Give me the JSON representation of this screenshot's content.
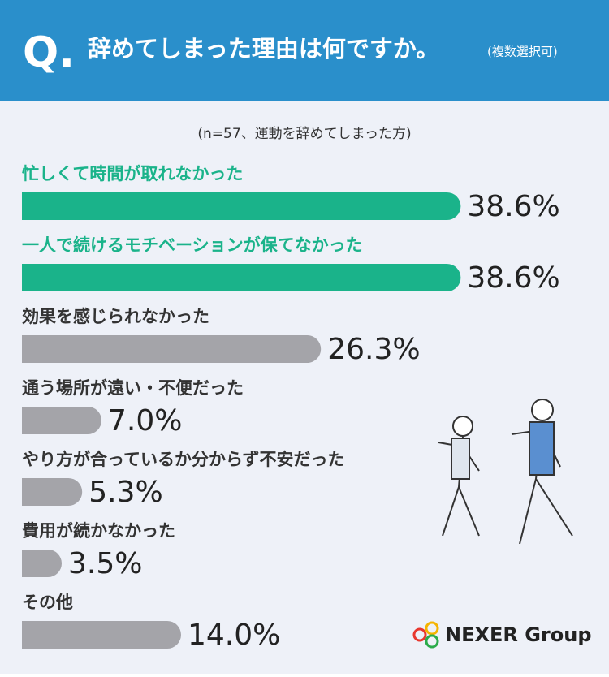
{
  "header": {
    "q": "Q.",
    "title": "辞めてしまった理由は何ですか。",
    "note": "(複数選択可)"
  },
  "chart_data": {
    "type": "hbar",
    "subtitle": "(n=57、運動を辞めてしまった方)",
    "categories": [
      "忙しくて時間が取れなかった",
      "一人で続けるモチベーションが保てなかった",
      "効果を感じられなかった",
      "通う場所が遠い・不便だった",
      "やり方が合っているか分からず不安だった",
      "費用が続かなかった",
      "その他"
    ],
    "values": [
      38.6,
      38.6,
      26.3,
      7.0,
      5.3,
      3.5,
      14.0
    ],
    "value_labels": [
      "38.6%",
      "38.6%",
      "26.3%",
      "7.0%",
      "5.3%",
      "3.5%",
      "14.0%"
    ],
    "colors": [
      "#1ab38a",
      "#1ab38a",
      "#a4a4a9",
      "#a4a4a9",
      "#a4a4a9",
      "#a4a4a9",
      "#a4a4a9"
    ],
    "label_colors": [
      "#1ab38a",
      "#1ab38a",
      "#333333",
      "#333333",
      "#333333",
      "#333333",
      "#333333"
    ],
    "xlim": [
      0,
      40
    ]
  },
  "logo": "NEXER Group"
}
